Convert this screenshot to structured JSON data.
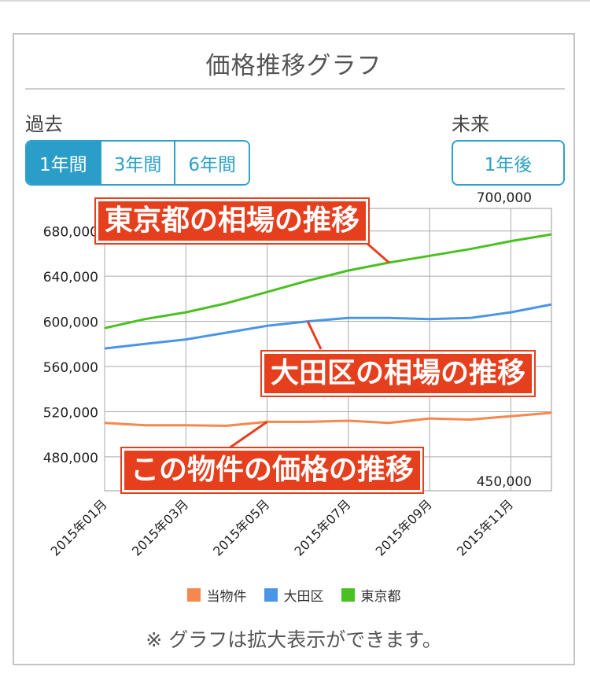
{
  "header": {
    "title": "価格推移グラフ"
  },
  "range_labels": {
    "past": "過去",
    "future": "未来"
  },
  "past_buttons": [
    {
      "label": "1年間",
      "active": true
    },
    {
      "label": "3年間",
      "active": false
    },
    {
      "label": "6年間",
      "active": false
    }
  ],
  "future_button": {
    "label": "1年後"
  },
  "chart_data": {
    "type": "line",
    "x": [
      "2015年01月",
      "2015年02月",
      "2015年03月",
      "2015年04月",
      "2015年05月",
      "2015年06月",
      "2015年07月",
      "2015年08月",
      "2015年09月",
      "2015年10月",
      "2015年11月",
      "2015年12月"
    ],
    "x_tick_labels": [
      "2015年01月",
      "2015年03月",
      "2015年05月",
      "2015年07月",
      "2015年09月",
      "2015年11月"
    ],
    "ylim": [
      450000,
      700000
    ],
    "y_ticks": [
      480000,
      520000,
      560000,
      600000,
      640000,
      680000
    ],
    "y_tick_labels": [
      "480,000",
      "520,000",
      "560,000",
      "600,000",
      "640,000",
      "680,000"
    ],
    "y_max_label": "700,000",
    "y_min_label": "450,000",
    "grid": true,
    "legend_position": "bottom",
    "series": [
      {
        "name": "当物件",
        "color": "#f5884e",
        "values": [
          510000,
          508000,
          508000,
          507500,
          511000,
          511000,
          512000,
          510000,
          514000,
          513000,
          516000,
          519000
        ]
      },
      {
        "name": "大田区",
        "color": "#4a95e6",
        "values": [
          576000,
          580000,
          584000,
          590000,
          596000,
          600000,
          603000,
          603000,
          602000,
          603000,
          608000,
          615000
        ]
      },
      {
        "name": "東京都",
        "color": "#4bc022",
        "values": [
          594000,
          602000,
          608000,
          616000,
          626000,
          636000,
          645000,
          652000,
          658000,
          664000,
          671000,
          677000
        ]
      }
    ]
  },
  "annotations": [
    {
      "text": "東京都の相場の推移",
      "target_series": "東京都"
    },
    {
      "text": "大田区の相場の推移",
      "target_series": "大田区"
    },
    {
      "text": "この物件の価格の推移",
      "target_series": "当物件"
    }
  ],
  "annotation_color": "#e63f1e",
  "footer_note": "※ グラフは拡大表示ができます。"
}
